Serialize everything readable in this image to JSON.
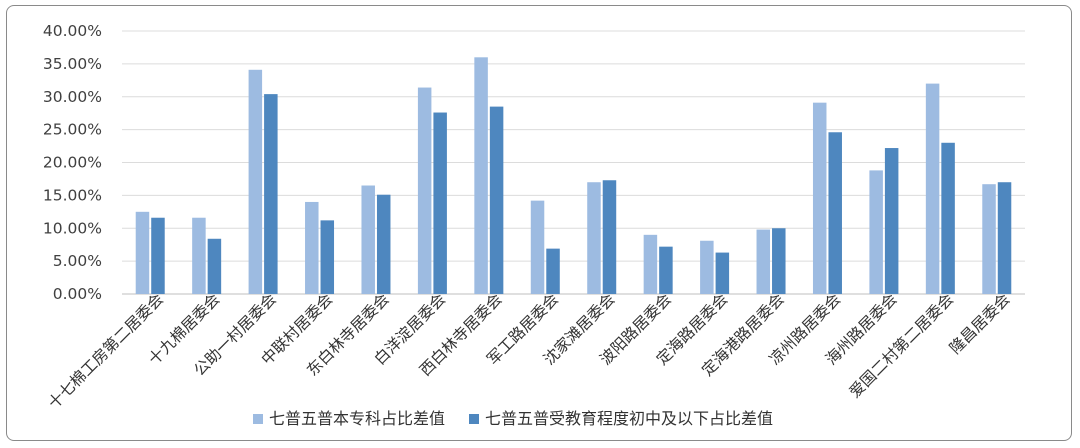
{
  "chart_data": {
    "type": "bar",
    "categories": [
      "十七棉工房第二居委会",
      "十九棉居委会",
      "公助一村居委会",
      "中联村居委会",
      "东白林寺居委会",
      "白洋淀居委会",
      "西白林寺居委会",
      "军工路居委会",
      "沈家滩居委会",
      "波阳路居委会",
      "定海路居委会",
      "定海港路居委会",
      "凉州路居委会",
      "海州路居委会",
      "爱国二村第二居委会",
      "隆昌居委会"
    ],
    "series": [
      {
        "name": "七普五普本专科占比差值",
        "color": "#9dbbe1",
        "values": [
          12.5,
          11.6,
          34.1,
          14.0,
          16.5,
          31.4,
          36.0,
          14.2,
          17.0,
          9.0,
          8.1,
          9.8,
          29.1,
          18.8,
          32.0,
          16.7
        ]
      },
      {
        "name": "七普五普受教育程度初中及以下占比差值",
        "color": "#4e87bf",
        "values": [
          11.6,
          8.4,
          30.4,
          11.2,
          15.1,
          27.6,
          28.5,
          6.9,
          17.3,
          7.2,
          6.3,
          10.0,
          24.6,
          22.2,
          23.0,
          17.0
        ]
      }
    ],
    "yticks": [
      "0.00%",
      "5.00%",
      "10.00%",
      "15.00%",
      "20.00%",
      "25.00%",
      "30.00%",
      "35.00%",
      "40.00%"
    ],
    "ylim": [
      0,
      40
    ],
    "grid": true,
    "legend_position": "bottom"
  }
}
